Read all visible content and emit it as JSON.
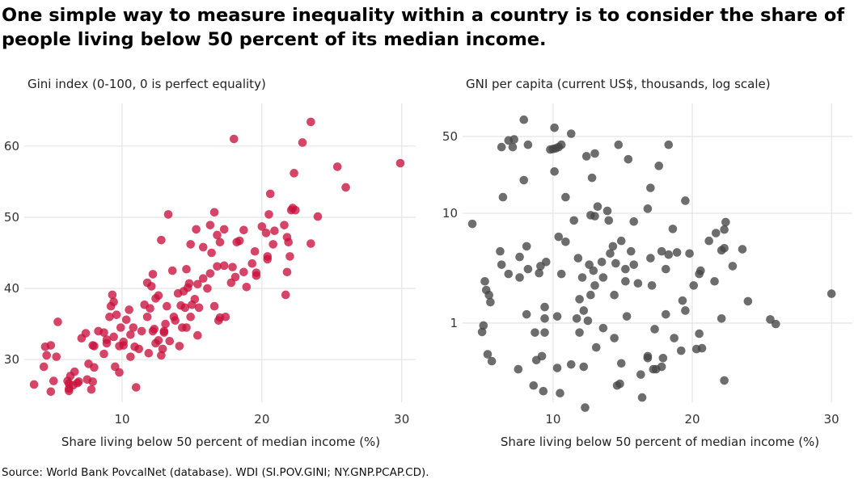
{
  "title": "One simple way to measure inequality within a country is to consider the share of people living below 50 percent of its median income.",
  "source": "Source: World Bank PovcalNet (database). WDI (SI.POV.GINI; NY.GNP.PCAP.CD).",
  "colors": {
    "gini": "#c8113c",
    "gni": "#444444",
    "grid": "#e6e6e6"
  },
  "chart_data": [
    {
      "type": "scatter",
      "subtitle": "Gini index (0-100, 0 is perfect equality)",
      "xlabel": "Share living below 50 percent of median income (%)",
      "xlim": [
        3,
        31
      ],
      "ylim": [
        24,
        66
      ],
      "x_ticks": [
        10,
        20,
        30
      ],
      "y_ticks": [
        30,
        40,
        50,
        60
      ],
      "x_tick_labels": [
        "10",
        "20",
        "30"
      ],
      "y_tick_labels": [
        "30",
        "40",
        "50",
        "60"
      ],
      "points": [
        [
          3.7,
          26.5
        ],
        [
          4.4,
          29
        ],
        [
          4.5,
          31.8
        ],
        [
          4.6,
          30.6
        ],
        [
          4.9,
          32
        ],
        [
          4.9,
          25.5
        ],
        [
          5.1,
          27
        ],
        [
          5.3,
          30.4
        ],
        [
          5.4,
          35.3
        ],
        [
          6.1,
          27
        ],
        [
          6.2,
          25.9
        ],
        [
          6.2,
          25.6
        ],
        [
          6.2,
          26.6
        ],
        [
          6.3,
          27.7
        ],
        [
          6.5,
          26.4
        ],
        [
          6.6,
          28.3
        ],
        [
          6.8,
          26.7
        ],
        [
          6.9,
          26.9
        ],
        [
          7.1,
          33
        ],
        [
          7.4,
          33.7
        ],
        [
          7.5,
          27.2
        ],
        [
          7.6,
          29.4
        ],
        [
          7.8,
          25.8
        ],
        [
          7.9,
          26.9
        ],
        [
          7.9,
          32
        ],
        [
          8,
          28.9
        ],
        [
          8,
          31.9
        ],
        [
          8.3,
          34
        ],
        [
          8.7,
          30.8
        ],
        [
          8.7,
          33.8
        ],
        [
          8.9,
          32.3
        ],
        [
          8.9,
          32.8
        ],
        [
          9.1,
          36
        ],
        [
          9.2,
          37.5
        ],
        [
          9.3,
          39.1
        ],
        [
          9.4,
          33.2
        ],
        [
          9.4,
          38.1
        ],
        [
          9.5,
          29
        ],
        [
          9.6,
          36.3
        ],
        [
          9.8,
          28.2
        ],
        [
          9.8,
          31.9
        ],
        [
          9.9,
          34.5
        ],
        [
          10.1,
          32
        ],
        [
          10.1,
          32.5
        ],
        [
          10.3,
          35.6
        ],
        [
          10.5,
          37
        ],
        [
          10.6,
          30.4
        ],
        [
          10.6,
          33.5
        ],
        [
          10.8,
          34.5
        ],
        [
          10.9,
          31.8
        ],
        [
          11,
          26.1
        ],
        [
          11.2,
          31.5
        ],
        [
          11.4,
          34
        ],
        [
          11.6,
          37.7
        ],
        [
          11.8,
          36
        ],
        [
          11.8,
          40.8
        ],
        [
          11.9,
          30.9
        ],
        [
          12,
          37.2
        ],
        [
          12.1,
          40.3
        ],
        [
          12.2,
          34
        ],
        [
          12.2,
          42
        ],
        [
          12.3,
          34.3
        ],
        [
          12.4,
          32.3
        ],
        [
          12.4,
          38.6
        ],
        [
          12.6,
          32.7
        ],
        [
          12.6,
          39
        ],
        [
          12.8,
          46.8
        ],
        [
          12.8,
          30.6
        ],
        [
          12.9,
          31.5
        ],
        [
          13,
          33.8
        ],
        [
          13,
          34
        ],
        [
          13.1,
          35
        ],
        [
          13.2,
          37.5
        ],
        [
          13.3,
          50.4
        ],
        [
          13.4,
          32.6
        ],
        [
          13.6,
          42.5
        ],
        [
          13.7,
          36
        ],
        [
          13.8,
          35.5
        ],
        [
          14,
          39.3
        ],
        [
          14.1,
          31.9
        ],
        [
          14.2,
          37.6
        ],
        [
          14.3,
          34.5
        ],
        [
          14.4,
          39.6
        ],
        [
          14.5,
          37.3
        ],
        [
          14.6,
          42.7
        ],
        [
          14.6,
          34.5
        ],
        [
          14.7,
          40.1
        ],
        [
          14.8,
          40.7
        ],
        [
          14.9,
          46.2
        ],
        [
          14.9,
          36
        ],
        [
          15,
          37.7
        ],
        [
          15.2,
          38.5
        ],
        [
          15.3,
          48.3
        ],
        [
          15.4,
          40.6
        ],
        [
          15.4,
          33.4
        ],
        [
          15.5,
          37.3
        ],
        [
          15.8,
          45.8
        ],
        [
          15.8,
          41.4
        ],
        [
          16.1,
          40
        ],
        [
          16.3,
          42.1
        ],
        [
          16.3,
          48.9
        ],
        [
          16.4,
          45
        ],
        [
          16.6,
          50.7
        ],
        [
          16.6,
          37.5
        ],
        [
          16.8,
          43.1
        ],
        [
          16.8,
          47.5
        ],
        [
          16.9,
          35.5
        ],
        [
          17,
          35.9
        ],
        [
          17,
          46.5
        ],
        [
          17.3,
          43.2
        ],
        [
          17.3,
          48.3
        ],
        [
          17.4,
          36
        ],
        [
          17.8,
          40.8
        ],
        [
          17.9,
          43
        ],
        [
          18,
          61
        ],
        [
          18.1,
          41.6
        ],
        [
          18.2,
          46.5
        ],
        [
          18.4,
          46.7
        ],
        [
          18.7,
          48.2
        ],
        [
          18.7,
          42.3
        ],
        [
          18.9,
          40.2
        ],
        [
          19.3,
          43.5
        ],
        [
          19.5,
          45.2
        ],
        [
          19.6,
          41.8
        ],
        [
          19.6,
          42.2
        ],
        [
          20,
          48.7
        ],
        [
          20.3,
          47.8
        ],
        [
          20.4,
          44.1
        ],
        [
          20.4,
          44.5
        ],
        [
          20.5,
          50.4
        ],
        [
          20.6,
          53.3
        ],
        [
          20.8,
          46.2
        ],
        [
          20.9,
          48.1
        ],
        [
          21.6,
          48.9
        ],
        [
          21.7,
          39.1
        ],
        [
          21.8,
          42.3
        ],
        [
          21.8,
          47.2
        ],
        [
          21.9,
          46.5
        ],
        [
          22,
          44.5
        ],
        [
          22.1,
          51
        ],
        [
          22.2,
          51.3
        ],
        [
          22.4,
          51
        ],
        [
          22.3,
          56.2
        ],
        [
          22.9,
          60.5
        ],
        [
          23.5,
          46.3
        ],
        [
          23.5,
          63.4
        ],
        [
          24,
          50.1
        ],
        [
          25.4,
          57.1
        ],
        [
          26,
          54.2
        ],
        [
          29.9,
          57.6
        ]
      ]
    },
    {
      "type": "scatter",
      "subtitle": "GNI per capita (current US$, thousands, log scale)",
      "xlabel": "Share living below 50 percent of median income (%)",
      "yscale": "log",
      "xlim": [
        3.5,
        31.5
      ],
      "ylim": [
        0.19,
        100
      ],
      "x_ticks": [
        10,
        20,
        30
      ],
      "y_ticks": [
        1,
        10,
        50
      ],
      "x_tick_labels": [
        "10",
        "20",
        "30"
      ],
      "y_tick_labels": [
        "1",
        "10",
        "50"
      ],
      "points": [
        [
          4.2,
          8
        ],
        [
          4.9,
          0.83
        ],
        [
          5,
          0.95
        ],
        [
          5.1,
          2.4
        ],
        [
          5.2,
          2
        ],
        [
          5.3,
          0.52
        ],
        [
          5.4,
          1.8
        ],
        [
          5.5,
          1.55
        ],
        [
          5.6,
          0.45
        ],
        [
          6.2,
          4.5
        ],
        [
          6.3,
          3.4
        ],
        [
          6.3,
          40
        ],
        [
          6.4,
          14
        ],
        [
          6.8,
          46
        ],
        [
          6.8,
          2.8
        ],
        [
          7.1,
          40
        ],
        [
          7.2,
          47
        ],
        [
          7.5,
          0.38
        ],
        [
          7.6,
          2.6
        ],
        [
          7.6,
          4
        ],
        [
          7.9,
          20
        ],
        [
          7.9,
          71
        ],
        [
          8.1,
          5
        ],
        [
          8.1,
          1.2
        ],
        [
          8.2,
          42
        ],
        [
          8.2,
          3.1
        ],
        [
          8.6,
          0.27
        ],
        [
          8.7,
          0.82
        ],
        [
          8.8,
          0.46
        ],
        [
          9,
          2.85
        ],
        [
          9.1,
          3.3
        ],
        [
          9.2,
          0.5
        ],
        [
          9.3,
          0.24
        ],
        [
          9.4,
          0.82
        ],
        [
          9.4,
          1.4
        ],
        [
          9.4,
          1.1
        ],
        [
          9.5,
          3.6
        ],
        [
          9.8,
          38
        ],
        [
          10,
          38.5
        ],
        [
          10.1,
          60
        ],
        [
          10.1,
          24
        ],
        [
          10.2,
          39
        ],
        [
          10.3,
          1.15
        ],
        [
          10.3,
          0.39
        ],
        [
          10.4,
          6.1
        ],
        [
          10.4,
          40
        ],
        [
          10.5,
          0.23
        ],
        [
          10.6,
          42
        ],
        [
          10.6,
          2.8
        ],
        [
          10.9,
          5.5
        ],
        [
          10.9,
          14
        ],
        [
          11.3,
          53
        ],
        [
          11.3,
          0.42
        ],
        [
          11.5,
          8.6
        ],
        [
          11.7,
          1.1
        ],
        [
          11.8,
          3.9
        ],
        [
          11.9,
          0.82
        ],
        [
          11.9,
          1.65
        ],
        [
          12.1,
          2.6
        ],
        [
          12.2,
          0.4
        ],
        [
          12.2,
          1.3
        ],
        [
          12.3,
          0.17
        ],
        [
          12.4,
          33
        ],
        [
          12.5,
          1.05
        ],
        [
          12.6,
          3.4
        ],
        [
          12.7,
          9.6
        ],
        [
          12.7,
          1.8
        ],
        [
          12.8,
          21
        ],
        [
          12.9,
          3
        ],
        [
          13,
          35
        ],
        [
          13,
          9.4
        ],
        [
          13,
          2.2
        ],
        [
          13.1,
          0.6
        ],
        [
          13.2,
          11.5
        ],
        [
          13.5,
          3.6
        ],
        [
          13.6,
          0.9
        ],
        [
          13.6,
          2.6
        ],
        [
          13.9,
          10.5
        ],
        [
          14,
          8.6
        ],
        [
          14.1,
          4.3
        ],
        [
          14.3,
          5
        ],
        [
          14.4,
          1.8
        ],
        [
          14.4,
          0.73
        ],
        [
          14.5,
          3.5
        ],
        [
          14.6,
          0.27
        ],
        [
          14.7,
          42
        ],
        [
          14.8,
          0.28
        ],
        [
          14.9,
          0.43
        ],
        [
          14.9,
          5.6
        ],
        [
          15.2,
          2.4
        ],
        [
          15.2,
          3.1
        ],
        [
          15.3,
          1.15
        ],
        [
          15.4,
          31
        ],
        [
          15.6,
          4.5
        ],
        [
          15.8,
          8.4
        ],
        [
          15.8,
          3.4
        ],
        [
          16.1,
          2.3
        ],
        [
          16.3,
          0.34
        ],
        [
          16.4,
          0.21
        ],
        [
          16.8,
          11
        ],
        [
          16.8,
          0.48
        ],
        [
          16.8,
          0.5
        ],
        [
          17,
          17
        ],
        [
          17,
          3.9
        ],
        [
          17.1,
          2.2
        ],
        [
          17.3,
          0.88
        ],
        [
          17.2,
          0.38
        ],
        [
          17.4,
          0.38
        ],
        [
          17.6,
          27
        ],
        [
          17.8,
          0.4
        ],
        [
          17.8,
          4.5
        ],
        [
          17.9,
          0.48
        ],
        [
          18.1,
          3.1
        ],
        [
          18.1,
          1.2
        ],
        [
          18.3,
          4.2
        ],
        [
          18.3,
          42
        ],
        [
          18.6,
          7.2
        ],
        [
          18.7,
          0.73
        ],
        [
          18.9,
          4.4
        ],
        [
          19.2,
          0.56
        ],
        [
          19.3,
          1.6
        ],
        [
          19.5,
          13
        ],
        [
          19.5,
          1.3
        ],
        [
          19.8,
          4.3
        ],
        [
          20.1,
          2.2
        ],
        [
          20.3,
          0.58
        ],
        [
          20.5,
          0.8
        ],
        [
          20.5,
          2.8
        ],
        [
          20.6,
          3
        ],
        [
          20.7,
          0.59
        ],
        [
          21.2,
          5.6
        ],
        [
          21.6,
          2.4
        ],
        [
          21.7,
          6.6
        ],
        [
          22.1,
          4.6
        ],
        [
          22.1,
          1.1
        ],
        [
          22.3,
          4.8
        ],
        [
          22.3,
          7.1
        ],
        [
          22.3,
          0.3
        ],
        [
          22.4,
          8.3
        ],
        [
          22.9,
          3.3
        ],
        [
          23.6,
          4.7
        ],
        [
          24,
          1.58
        ],
        [
          25.6,
          1.08
        ],
        [
          26,
          0.98
        ],
        [
          30,
          1.85
        ]
      ]
    }
  ]
}
